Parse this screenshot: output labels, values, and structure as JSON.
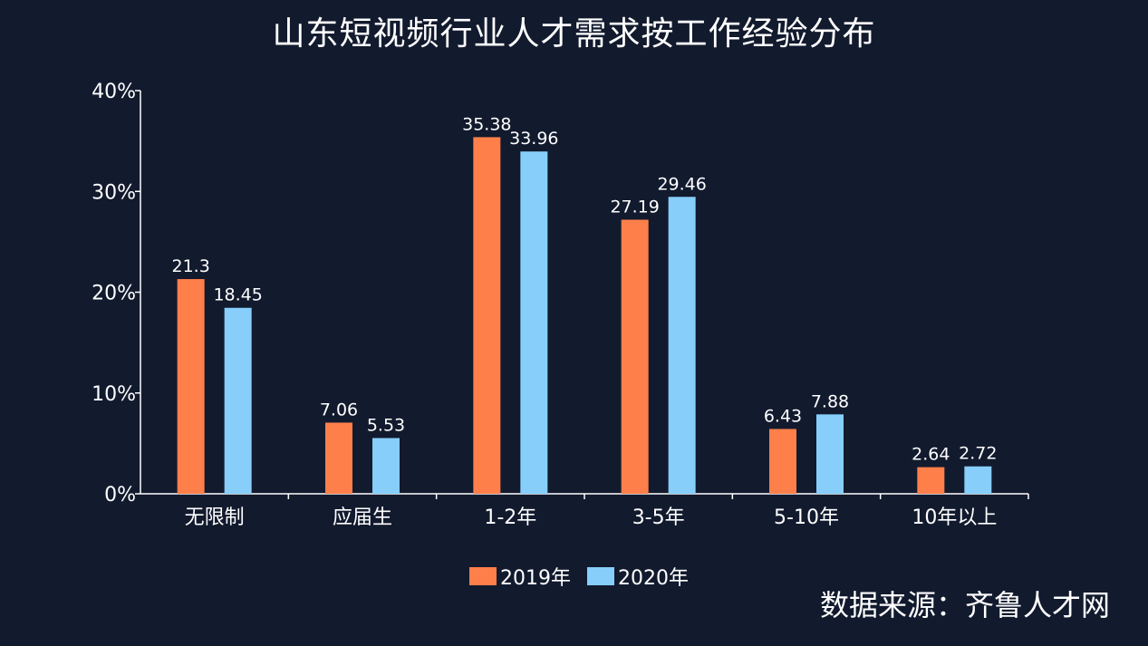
{
  "chart_data": {
    "type": "bar",
    "title": "山东短视频行业人才需求按工作经验分布",
    "source": "数据来源：齐鲁人才网",
    "categories": [
      "无限制",
      "应届生",
      "1-2年",
      "3-5年",
      "5-10年",
      "10年以上"
    ],
    "series": [
      {
        "name": "2019年",
        "color": "#ff7f4a",
        "values": [
          21.3,
          7.06,
          35.38,
          27.19,
          6.43,
          2.64
        ]
      },
      {
        "name": "2020年",
        "color": "#87cefa",
        "values": [
          18.45,
          5.53,
          33.96,
          29.46,
          7.88,
          2.72
        ]
      }
    ],
    "value_labels": [
      [
        "21.3",
        "7.06",
        "35.38",
        "27.19",
        "6.43",
        "2.64"
      ],
      [
        "18.45",
        "5.53",
        "33.96",
        "29.46",
        "7.88",
        "2.72"
      ]
    ],
    "yticks": [
      0,
      10,
      20,
      30,
      40
    ],
    "ytick_labels": [
      "0%",
      "10%",
      "20%",
      "30%",
      "40%"
    ],
    "ylim": [
      0,
      40
    ],
    "xlabel": "",
    "ylabel": "",
    "grid": false,
    "legend_position": "bottom-center",
    "background_color": "#121a2e",
    "axis_color": "#ffffff"
  }
}
